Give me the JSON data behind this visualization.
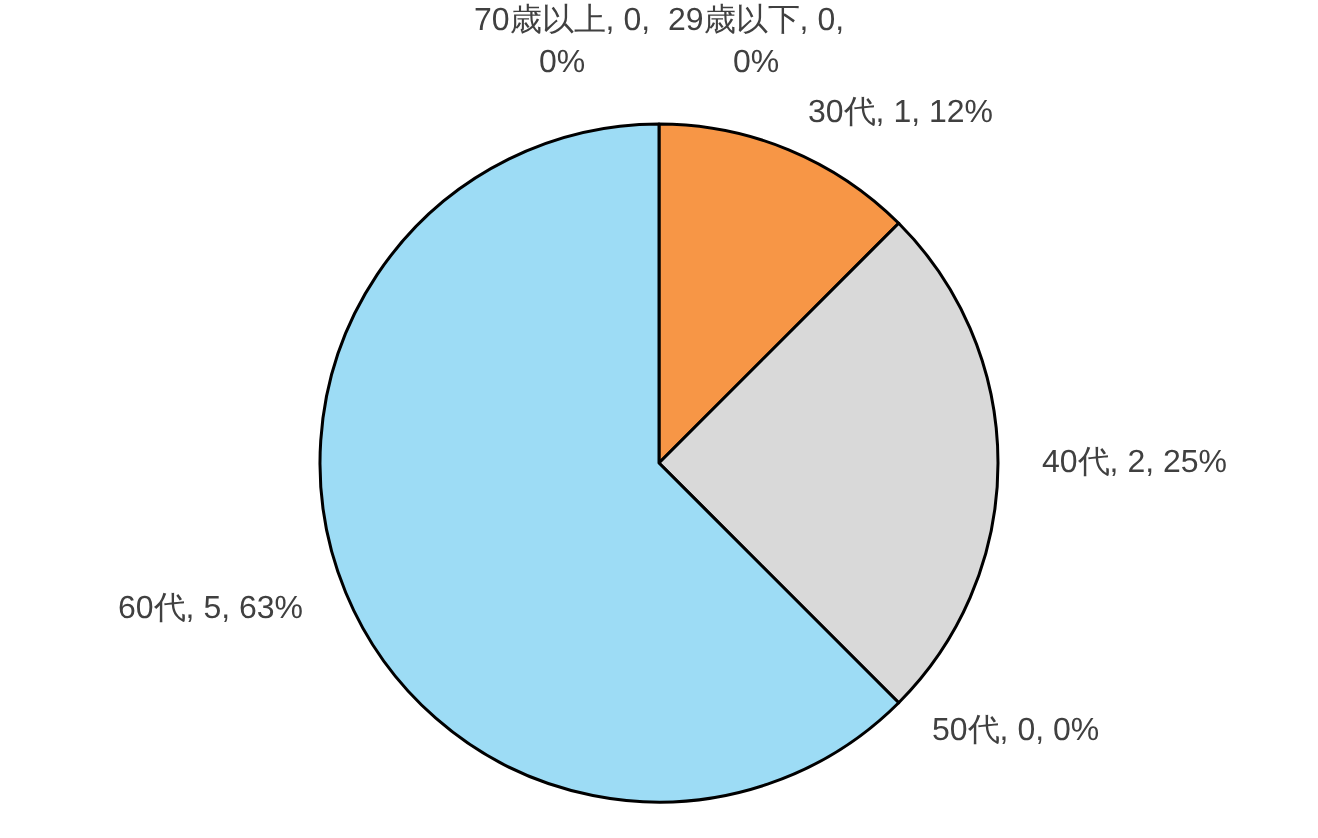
{
  "chart_data": {
    "type": "pie",
    "categories": [
      "29歳以下",
      "30代",
      "40代",
      "50代",
      "60代",
      "70歳以上"
    ],
    "values": [
      0,
      1,
      2,
      0,
      5,
      0
    ],
    "colors": [
      "#d9d9d9",
      "#f79646",
      "#d9d9d9",
      "#d9d9d9",
      "#9ddcf5",
      "#d9d9d9"
    ],
    "value_labels": [
      ", 0, 0%",
      ", 1, 12%",
      ", 2, 25%",
      ", 0, 0%",
      ", 5, 63%",
      ", 0, 0%"
    ],
    "legend": false
  }
}
